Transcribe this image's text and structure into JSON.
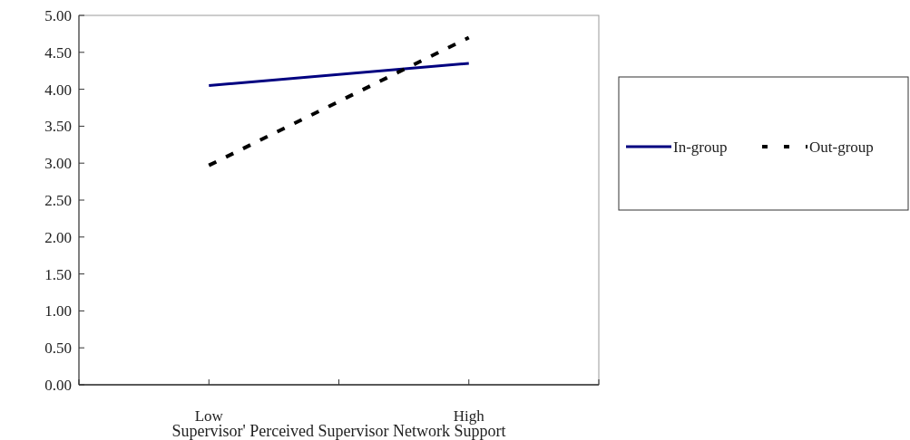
{
  "chart_data": {
    "type": "line",
    "xlabel": "Supervisor' Perceived Supervisor Network Support",
    "categories": [
      null,
      "Low",
      null,
      "High",
      null
    ],
    "series": [
      {
        "name": "In-group",
        "color": "#000080",
        "line_style": "solid",
        "values": [
          null,
          4.05,
          null,
          4.35,
          null
        ]
      },
      {
        "name": "Out-group",
        "color": "#000000",
        "line_style": "dashed",
        "values": [
          null,
          2.97,
          null,
          4.7,
          null
        ]
      }
    ],
    "ylim": [
      0,
      5
    ],
    "yticks": [
      {
        "value": 0,
        "label": "0.00"
      },
      {
        "value": 0.5,
        "label": "0.50"
      },
      {
        "value": 1,
        "label": "1.00"
      },
      {
        "value": 1.5,
        "label": "1.50"
      },
      {
        "value": 2,
        "label": "2.00"
      },
      {
        "value": 2.5,
        "label": "2.50"
      },
      {
        "value": 3,
        "label": "3.00"
      },
      {
        "value": 3.5,
        "label": "3.50"
      },
      {
        "value": 4,
        "label": "4.00"
      },
      {
        "value": 4.5,
        "label": "4.50"
      },
      {
        "value": 5,
        "label": "5.00"
      }
    ],
    "grid": false,
    "legend": "right",
    "marker": "none"
  }
}
